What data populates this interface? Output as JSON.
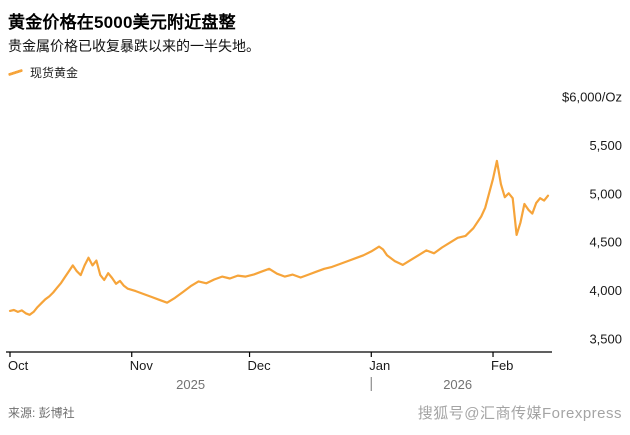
{
  "header": {
    "title": "黄金价格在5000美元附近盘整",
    "subtitle": "贵金属价格已收复暴跌以来的一半失地。"
  },
  "legend": {
    "label": "现货黄金"
  },
  "footer": {
    "source": "来源: 彭博社",
    "watermark": "搜狐号@汇商传媒Forexpress"
  },
  "colors": {
    "line": "#F6A43A",
    "axis": "#000000",
    "tick_text": "#1a1a1a",
    "year_text": "#737373",
    "separator": "#8c8c8c"
  },
  "chart_data": {
    "type": "line",
    "title": "黄金价格在5000美元附近盘整",
    "subtitle": "贵金属价格已收复暴跌以来的一半失地。",
    "ylabel": "$/Oz",
    "xlabel": "",
    "grid": false,
    "legend_position": "top-left",
    "y_domain": [
      3500,
      6000
    ],
    "x_domain": [
      0,
      137
    ],
    "y_ticks": [
      {
        "value": 6000,
        "label": "$6,000/Oz"
      },
      {
        "value": 5500,
        "label": "5,500"
      },
      {
        "value": 5000,
        "label": "5,000"
      },
      {
        "value": 4500,
        "label": "4,500"
      },
      {
        "value": 4000,
        "label": "4,000"
      },
      {
        "value": 3500,
        "label": "3,500"
      }
    ],
    "x_ticks": [
      {
        "day": 0,
        "label": "Oct"
      },
      {
        "day": 31,
        "label": "Nov"
      },
      {
        "day": 61,
        "label": "Dec"
      },
      {
        "day": 92,
        "label": "Jan"
      },
      {
        "day": 123,
        "label": "Feb"
      }
    ],
    "year_labels": [
      {
        "day_center": 46,
        "label": "2025"
      },
      {
        "day_center": 114,
        "label": "2026"
      }
    ],
    "year_separator_day": 92,
    "series": [
      {
        "name": "现货黄金",
        "points": [
          [
            0,
            3790
          ],
          [
            1,
            3800
          ],
          [
            2,
            3780
          ],
          [
            3,
            3795
          ],
          [
            4,
            3765
          ],
          [
            5,
            3750
          ],
          [
            6,
            3780
          ],
          [
            7,
            3830
          ],
          [
            8,
            3870
          ],
          [
            9,
            3910
          ],
          [
            10,
            3940
          ],
          [
            11,
            3980
          ],
          [
            12,
            4030
          ],
          [
            13,
            4080
          ],
          [
            14,
            4140
          ],
          [
            15,
            4200
          ],
          [
            16,
            4260
          ],
          [
            17,
            4200
          ],
          [
            18,
            4160
          ],
          [
            19,
            4260
          ],
          [
            20,
            4340
          ],
          [
            21,
            4260
          ],
          [
            22,
            4310
          ],
          [
            23,
            4160
          ],
          [
            24,
            4110
          ],
          [
            25,
            4180
          ],
          [
            26,
            4130
          ],
          [
            27,
            4070
          ],
          [
            28,
            4100
          ],
          [
            29,
            4050
          ],
          [
            30,
            4020
          ],
          [
            32,
            3995
          ],
          [
            34,
            3965
          ],
          [
            36,
            3935
          ],
          [
            38,
            3905
          ],
          [
            40,
            3875
          ],
          [
            42,
            3925
          ],
          [
            44,
            3985
          ],
          [
            46,
            4045
          ],
          [
            48,
            4095
          ],
          [
            50,
            4075
          ],
          [
            52,
            4115
          ],
          [
            54,
            4145
          ],
          [
            56,
            4125
          ],
          [
            58,
            4155
          ],
          [
            60,
            4145
          ],
          [
            62,
            4165
          ],
          [
            64,
            4195
          ],
          [
            66,
            4225
          ],
          [
            68,
            4175
          ],
          [
            70,
            4145
          ],
          [
            72,
            4165
          ],
          [
            74,
            4135
          ],
          [
            76,
            4165
          ],
          [
            78,
            4195
          ],
          [
            80,
            4225
          ],
          [
            82,
            4245
          ],
          [
            84,
            4275
          ],
          [
            86,
            4305
          ],
          [
            88,
            4335
          ],
          [
            90,
            4365
          ],
          [
            92,
            4405
          ],
          [
            94,
            4455
          ],
          [
            95,
            4425
          ],
          [
            96,
            4365
          ],
          [
            98,
            4305
          ],
          [
            100,
            4265
          ],
          [
            102,
            4315
          ],
          [
            104,
            4365
          ],
          [
            106,
            4415
          ],
          [
            108,
            4385
          ],
          [
            110,
            4445
          ],
          [
            112,
            4495
          ],
          [
            114,
            4545
          ],
          [
            116,
            4565
          ],
          [
            118,
            4645
          ],
          [
            120,
            4765
          ],
          [
            121,
            4855
          ],
          [
            122,
            5005
          ],
          [
            123,
            5155
          ],
          [
            124,
            5340
          ],
          [
            125,
            5100
          ],
          [
            126,
            4965
          ],
          [
            127,
            5005
          ],
          [
            128,
            4955
          ],
          [
            129,
            4575
          ],
          [
            130,
            4705
          ],
          [
            131,
            4895
          ],
          [
            132,
            4835
          ],
          [
            133,
            4795
          ],
          [
            134,
            4905
          ],
          [
            135,
            4955
          ],
          [
            136,
            4930
          ],
          [
            137,
            4980
          ]
        ]
      }
    ]
  }
}
